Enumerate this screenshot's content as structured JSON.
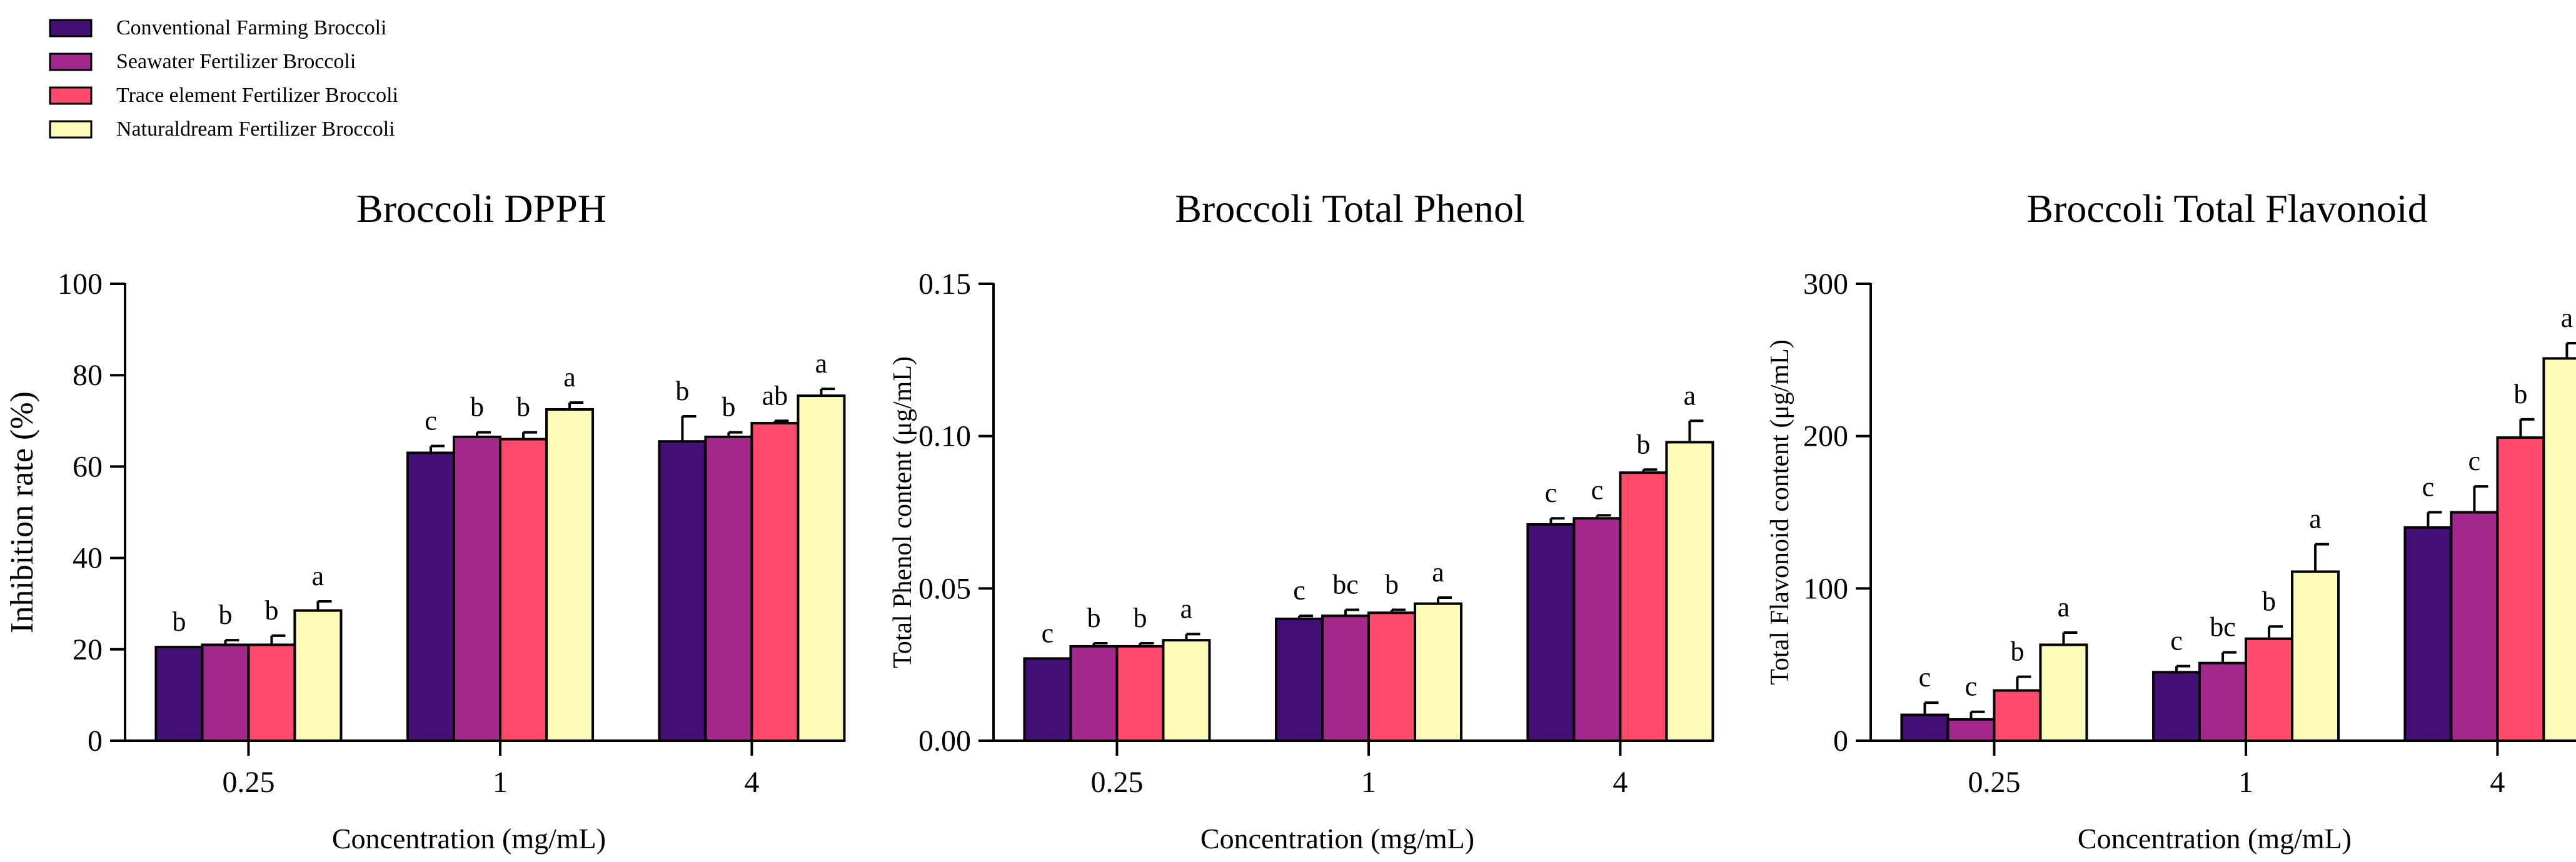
{
  "legend": {
    "entries": [
      {
        "label": "Conventional Farming Broccoli",
        "color": "#440f75"
      },
      {
        "label": "Seawater Fertilizer Broccoli",
        "color": "#a3288c"
      },
      {
        "label": "Trace element Fertilizer Broccoli",
        "color": "#ff4b6b"
      },
      {
        "label": "Naturaldream Fertilizer Broccoli",
        "color": "#fdfbb8"
      }
    ]
  },
  "chart_data": [
    {
      "type": "bar",
      "title": "Broccoli DPPH",
      "xlabel": "Concentration (mg/mL)",
      "ylabel": "Inhibition rate (%)",
      "ylim": [
        0,
        100
      ],
      "yticks": [
        0,
        20,
        40,
        60,
        80,
        100
      ],
      "ytick_labels": [
        "0",
        "20",
        "40",
        "60",
        "80",
        "100"
      ],
      "categories": [
        "0.25",
        "1",
        "4"
      ],
      "series": [
        {
          "name": "Conventional Farming Broccoli",
          "values": [
            20.5,
            63,
            65.5
          ],
          "errors": [
            0,
            1.5,
            5.5
          ],
          "letters": [
            "b",
            "c",
            "b"
          ]
        },
        {
          "name": "Seawater Fertilizer Broccoli",
          "values": [
            21,
            66.5,
            66.5
          ],
          "errors": [
            1,
            1,
            1
          ],
          "letters": [
            "b",
            "b",
            "b"
          ]
        },
        {
          "name": "Trace element Fertilizer Broccoli",
          "values": [
            21,
            66,
            69.5
          ],
          "errors": [
            2,
            1.5,
            0.5
          ],
          "letters": [
            "b",
            "b",
            "ab"
          ]
        },
        {
          "name": "Naturaldream Fertilizer Broccoli",
          "values": [
            28.5,
            72.5,
            75.5
          ],
          "errors": [
            2,
            1.5,
            1.5
          ],
          "letters": [
            "a",
            "a",
            "a"
          ]
        }
      ]
    },
    {
      "type": "bar",
      "title": "Broccoli Total Phenol",
      "xlabel": "Concentration (mg/mL)",
      "ylabel": "Total Phenol content (μg/mL)",
      "ylim": [
        0,
        0.15
      ],
      "yticks": [
        0,
        0.05,
        0.1,
        0.15
      ],
      "ytick_labels": [
        "0.00",
        "0.05",
        "0.10",
        "0.15"
      ],
      "categories": [
        "0.25",
        "1",
        "4"
      ],
      "series": [
        {
          "name": "Conventional Farming Broccoli",
          "values": [
            0.027,
            0.04,
            0.071
          ],
          "errors": [
            0,
            0.001,
            0.002
          ],
          "letters": [
            "c",
            "c",
            "c"
          ]
        },
        {
          "name": "Seawater Fertilizer Broccoli",
          "values": [
            0.031,
            0.041,
            0.073
          ],
          "errors": [
            0.001,
            0.002,
            0.001
          ],
          "letters": [
            "b",
            "bc",
            "c"
          ]
        },
        {
          "name": "Trace element Fertilizer Broccoli",
          "values": [
            0.031,
            0.042,
            0.088
          ],
          "errors": [
            0.001,
            0.001,
            0.001
          ],
          "letters": [
            "b",
            "b",
            "b"
          ]
        },
        {
          "name": "Naturaldream Fertilizer Broccoli",
          "values": [
            0.033,
            0.045,
            0.098
          ],
          "errors": [
            0.002,
            0.002,
            0.007
          ],
          "letters": [
            "a",
            "a",
            "a"
          ]
        }
      ]
    },
    {
      "type": "bar",
      "title": "Broccoli Total Flavonoid",
      "xlabel": "Concentration (mg/mL)",
      "ylabel": "Total Flavonoid content (μg/mL)",
      "ylim": [
        0,
        300
      ],
      "yticks": [
        0,
        100,
        200,
        300
      ],
      "ytick_labels": [
        "0",
        "100",
        "200",
        "300"
      ],
      "categories": [
        "0.25",
        "1",
        "4"
      ],
      "series": [
        {
          "name": "Conventional Farming Broccoli",
          "values": [
            17,
            45,
            140
          ],
          "errors": [
            8,
            4,
            10
          ],
          "letters": [
            "c",
            "c",
            "c"
          ]
        },
        {
          "name": "Seawater Fertilizer Broccoli",
          "values": [
            14,
            51,
            150
          ],
          "errors": [
            5,
            7,
            17
          ],
          "letters": [
            "c",
            "bc",
            "c"
          ]
        },
        {
          "name": "Trace element Fertilizer Broccoli",
          "values": [
            33,
            67,
            199
          ],
          "errors": [
            9,
            8,
            12
          ],
          "letters": [
            "b",
            "b",
            "b"
          ]
        },
        {
          "name": "Naturaldream Fertilizer Broccoli",
          "values": [
            63,
            111,
            251
          ],
          "errors": [
            8,
            18,
            10
          ],
          "letters": [
            "a",
            "a",
            "a"
          ]
        }
      ]
    }
  ]
}
